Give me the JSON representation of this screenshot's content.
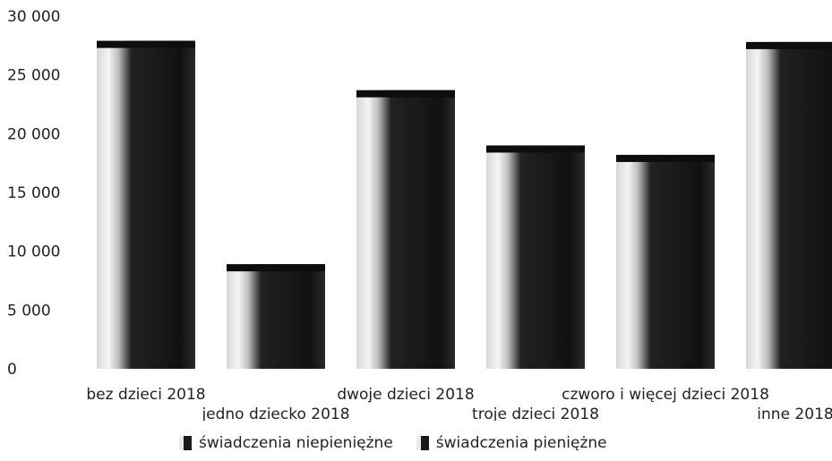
{
  "chart_data": {
    "type": "bar",
    "stacked": true,
    "categories": [
      "bez dzieci 2018",
      "jedno dziecko 2018",
      "dwoje dzieci 2018",
      "troje dzieci 2018",
      "czworo i więcej dzieci 2018",
      "inne 2018"
    ],
    "series": [
      {
        "name": "świadczenia niepieniężne",
        "values": [
          0,
          0,
          0,
          0,
          0,
          0
        ]
      },
      {
        "name": "świadczenia pieniężne",
        "values": [
          27900,
          8900,
          23700,
          19000,
          18200,
          27800
        ]
      }
    ],
    "ylim": [
      0,
      30000
    ],
    "yticks": [
      "0",
      "5 000",
      "10 000",
      "15 000",
      "20 000",
      "25 000",
      "30 000"
    ],
    "grid": false,
    "legend_position": "bottom",
    "colors": {
      "bar_light": "#ececec",
      "bar_dark": "#1c1c1c",
      "bar_cap": "#0d0d0d"
    }
  },
  "legend": [
    "świadczenia niepieniężne",
    "świadczenia pieniężne"
  ]
}
